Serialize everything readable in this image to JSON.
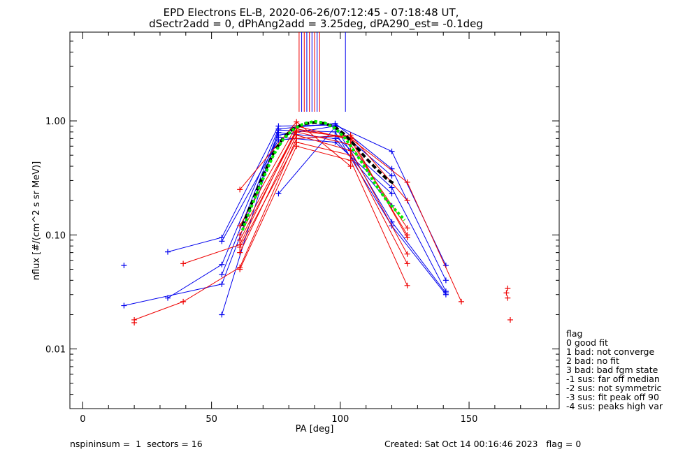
{
  "chart_data": {
    "type": "line",
    "title": "EPD Electrons EL-B, 2020-06-26/07:12:45 - 07:18:48 UT,",
    "subtitle": "dSectr2add = 0, dPhAng2add = 3.25deg, dPA290_est=  -0.1deg",
    "xlabel": "PA [deg]",
    "ylabel": "nflux [#/(cm^2 s sr MeV)]",
    "xlim": [
      -5,
      185
    ],
    "ylim": [
      0.003,
      6
    ],
    "yscale": "log",
    "xticks": [
      0,
      50,
      100,
      150
    ],
    "xtick_labels": [
      "0",
      "50",
      "100",
      "150"
    ],
    "yticks": [
      0.01,
      0.1,
      1.0
    ],
    "ytick_labels": [
      "0.01",
      "0.10",
      "1.00"
    ],
    "grid": false,
    "colors": {
      "blue": "#0000ee",
      "red": "#ee0000",
      "black": "#000000",
      "green": "#00ee00"
    },
    "peak_markers": [
      {
        "x": 84,
        "color": "#ee0000"
      },
      {
        "x": 85,
        "color": "#0000ee"
      },
      {
        "x": 86,
        "color": "#ee0000"
      },
      {
        "x": 87,
        "color": "#0000ee"
      },
      {
        "x": 88,
        "color": "#ee0000"
      },
      {
        "x": 89,
        "color": "#0000ee"
      },
      {
        "x": 90,
        "color": "#ee0000"
      },
      {
        "x": 91,
        "color": "#0000ee"
      },
      {
        "x": 92,
        "color": "#ee0000"
      },
      {
        "x": 102,
        "color": "#0000ee"
      }
    ],
    "series": [
      {
        "color": "#0000ee",
        "points": [
          [
            16,
            0.024
          ],
          [
            54,
            0.037
          ],
          [
            76,
            0.75
          ],
          [
            98,
            0.9
          ],
          [
            120,
            0.13
          ],
          [
            141,
            0.031
          ]
        ]
      },
      {
        "color": "#0000ee",
        "points": [
          [
            33,
            0.071
          ],
          [
            54,
            0.095
          ],
          [
            76,
            0.9
          ],
          [
            98,
            0.92
          ],
          [
            120,
            0.54
          ],
          [
            141,
            0.054
          ]
        ]
      },
      {
        "color": "#0000ee",
        "points": [
          [
            33,
            0.028
          ],
          [
            54,
            0.055
          ],
          [
            76,
            0.85
          ],
          [
            98,
            0.95
          ],
          [
            120,
            0.38
          ],
          [
            141,
            0.04
          ]
        ]
      },
      {
        "color": "#0000ee",
        "points": [
          [
            54,
            0.02
          ],
          [
            76,
            0.83
          ],
          [
            98,
            0.8
          ],
          [
            120,
            0.12
          ],
          [
            141,
            0.03
          ]
        ]
      },
      {
        "color": "#0000ee",
        "points": [
          [
            54,
            0.088
          ],
          [
            76,
            0.68
          ],
          [
            98,
            0.74
          ],
          [
            120,
            0.26
          ],
          [
            141,
            0.032
          ]
        ]
      },
      {
        "color": "#0000ee",
        "points": [
          [
            54,
            0.045
          ],
          [
            76,
            0.79
          ],
          [
            98,
            0.7
          ],
          [
            120,
            0.18
          ]
        ]
      },
      {
        "color": "#0000ee",
        "points": [
          [
            76,
            0.23
          ],
          [
            98,
            0.88
          ],
          [
            120,
            0.33
          ]
        ]
      },
      {
        "color": "#0000ee",
        "points": [
          [
            76,
            0.72
          ],
          [
            98,
            0.65
          ],
          [
            120,
            0.23
          ]
        ]
      },
      {
        "color": "#ee0000",
        "points": [
          [
            20,
            0.018
          ],
          [
            39,
            0.026
          ],
          [
            61,
            0.052
          ],
          [
            83,
            0.7
          ],
          [
            104,
            0.75
          ],
          [
            126,
            0.2
          ]
        ]
      },
      {
        "color": "#ee0000",
        "points": [
          [
            39,
            0.056
          ],
          [
            61,
            0.082
          ],
          [
            83,
            0.85
          ],
          [
            104,
            0.7
          ],
          [
            126,
            0.29
          ],
          [
            147,
            0.026
          ]
        ]
      },
      {
        "color": "#ee0000",
        "points": [
          [
            61,
            0.25
          ],
          [
            83,
            0.98
          ],
          [
            104,
            0.4
          ]
        ]
      },
      {
        "color": "#ee0000",
        "points": [
          [
            61,
            0.09
          ],
          [
            83,
            0.8
          ],
          [
            104,
            0.62
          ],
          [
            126,
            0.115
          ]
        ]
      },
      {
        "color": "#ee0000",
        "points": [
          [
            61,
            0.12
          ],
          [
            83,
            0.9
          ],
          [
            104,
            0.68
          ],
          [
            126,
            0.1
          ]
        ]
      },
      {
        "color": "#ee0000",
        "points": [
          [
            61,
            0.07
          ],
          [
            83,
            0.75
          ],
          [
            104,
            0.55
          ],
          [
            126,
            0.068
          ]
        ]
      },
      {
        "color": "#ee0000",
        "points": [
          [
            61,
            0.078
          ],
          [
            83,
            0.65
          ],
          [
            104,
            0.5
          ],
          [
            126,
            0.056
          ]
        ]
      },
      {
        "color": "#ee0000",
        "points": [
          [
            61,
            0.05
          ],
          [
            83,
            0.6
          ],
          [
            104,
            0.45
          ],
          [
            126,
            0.036
          ]
        ]
      },
      {
        "color": "#ee0000",
        "points": [
          [
            61,
            0.1
          ],
          [
            83,
            0.82
          ],
          [
            104,
            0.72
          ],
          [
            126,
            0.095
          ]
        ]
      }
    ],
    "scatter_points": [
      {
        "x": 16,
        "y": 0.054,
        "color": "#0000ee"
      },
      {
        "x": 20,
        "y": 0.017,
        "color": "#ee0000"
      },
      {
        "x": 165,
        "y": 0.034,
        "color": "#ee0000"
      },
      {
        "x": 164.5,
        "y": 0.031,
        "color": "#ee0000"
      },
      {
        "x": 165,
        "y": 0.028,
        "color": "#ee0000"
      },
      {
        "x": 166,
        "y": 0.018,
        "color": "#ee0000"
      }
    ],
    "fit_curves": [
      {
        "color": "#000000",
        "style": "dashed",
        "points": [
          [
            62,
            0.12
          ],
          [
            66,
            0.2
          ],
          [
            70,
            0.33
          ],
          [
            74,
            0.52
          ],
          [
            78,
            0.72
          ],
          [
            82,
            0.86
          ],
          [
            86,
            0.94
          ],
          [
            90,
            0.97
          ],
          [
            94,
            0.95
          ],
          [
            98,
            0.88
          ],
          [
            102,
            0.75
          ],
          [
            106,
            0.6
          ],
          [
            110,
            0.47
          ],
          [
            114,
            0.38
          ],
          [
            118,
            0.31
          ],
          [
            121,
            0.28
          ]
        ]
      },
      {
        "color": "#00ee00",
        "style": "dotted",
        "points": [
          [
            62,
            0.11
          ],
          [
            66,
            0.19
          ],
          [
            70,
            0.31
          ],
          [
            74,
            0.5
          ],
          [
            78,
            0.7
          ],
          [
            82,
            0.85
          ],
          [
            86,
            0.95
          ],
          [
            90,
            0.99
          ],
          [
            94,
            0.96
          ],
          [
            98,
            0.86
          ],
          [
            102,
            0.7
          ],
          [
            106,
            0.52
          ],
          [
            110,
            0.38
          ],
          [
            114,
            0.27
          ],
          [
            118,
            0.2
          ],
          [
            122,
            0.16
          ],
          [
            125,
            0.135
          ]
        ]
      }
    ],
    "legend": {
      "placement": "right",
      "title": "flag",
      "entries": [
        " 0 good fit",
        " 1 bad: not converge",
        " 2 bad: no fit",
        " 3 bad: bad fgm state",
        "-1 sus: far off median",
        "-2 sus: not symmetric",
        "-3 sus: fit peak off 90",
        "-4 sus: peaks high var"
      ]
    }
  },
  "footer": {
    "left": "nspininsum =  1  sectors = 16",
    "right": "Created: Sat Oct 14 00:16:46 2023   flag = 0"
  }
}
